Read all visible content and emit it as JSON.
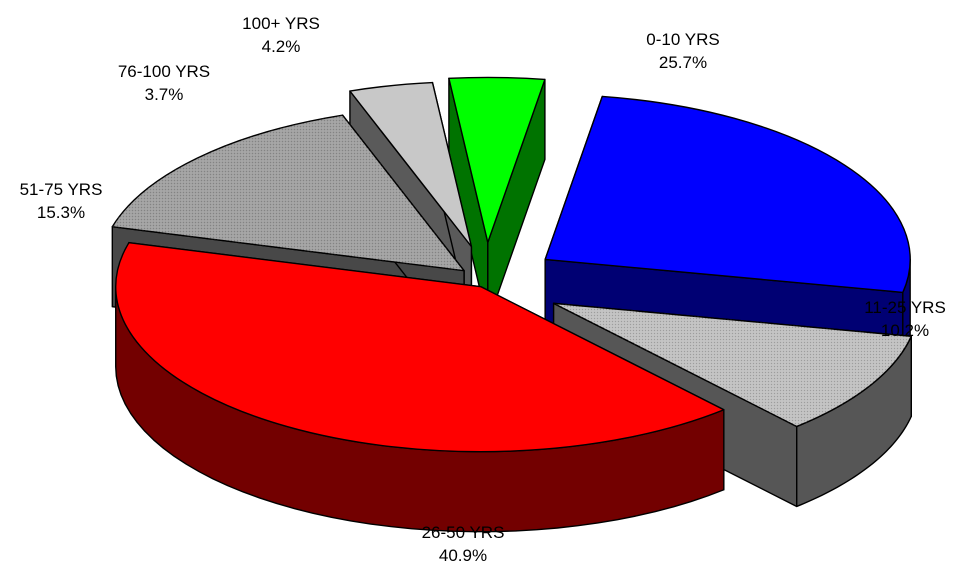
{
  "chart_data": {
    "type": "pie",
    "title": "",
    "style": "3d-exploded",
    "legend": "none",
    "slices": [
      {
        "label": "0-10 YRS",
        "value": 25.7,
        "value_label": "25.7%",
        "color": "#0000FF"
      },
      {
        "label": "11-25 YRS",
        "value": 10.2,
        "value_label": "10.2%",
        "color": "#C0C0C0"
      },
      {
        "label": "26-50 YRS",
        "value": 40.9,
        "value_label": "40.9%",
        "color": "#FF0000"
      },
      {
        "label": "51-75 YRS",
        "value": 15.3,
        "value_label": "15.3%",
        "color": "#A0A0A0"
      },
      {
        "label": "76-100 YRS",
        "value": 3.7,
        "value_label": "3.7%",
        "color": "#C8C8C8"
      },
      {
        "label": "100+ YRS",
        "value": 4.2,
        "value_label": "4.2%",
        "color": "#00FF00"
      }
    ]
  }
}
